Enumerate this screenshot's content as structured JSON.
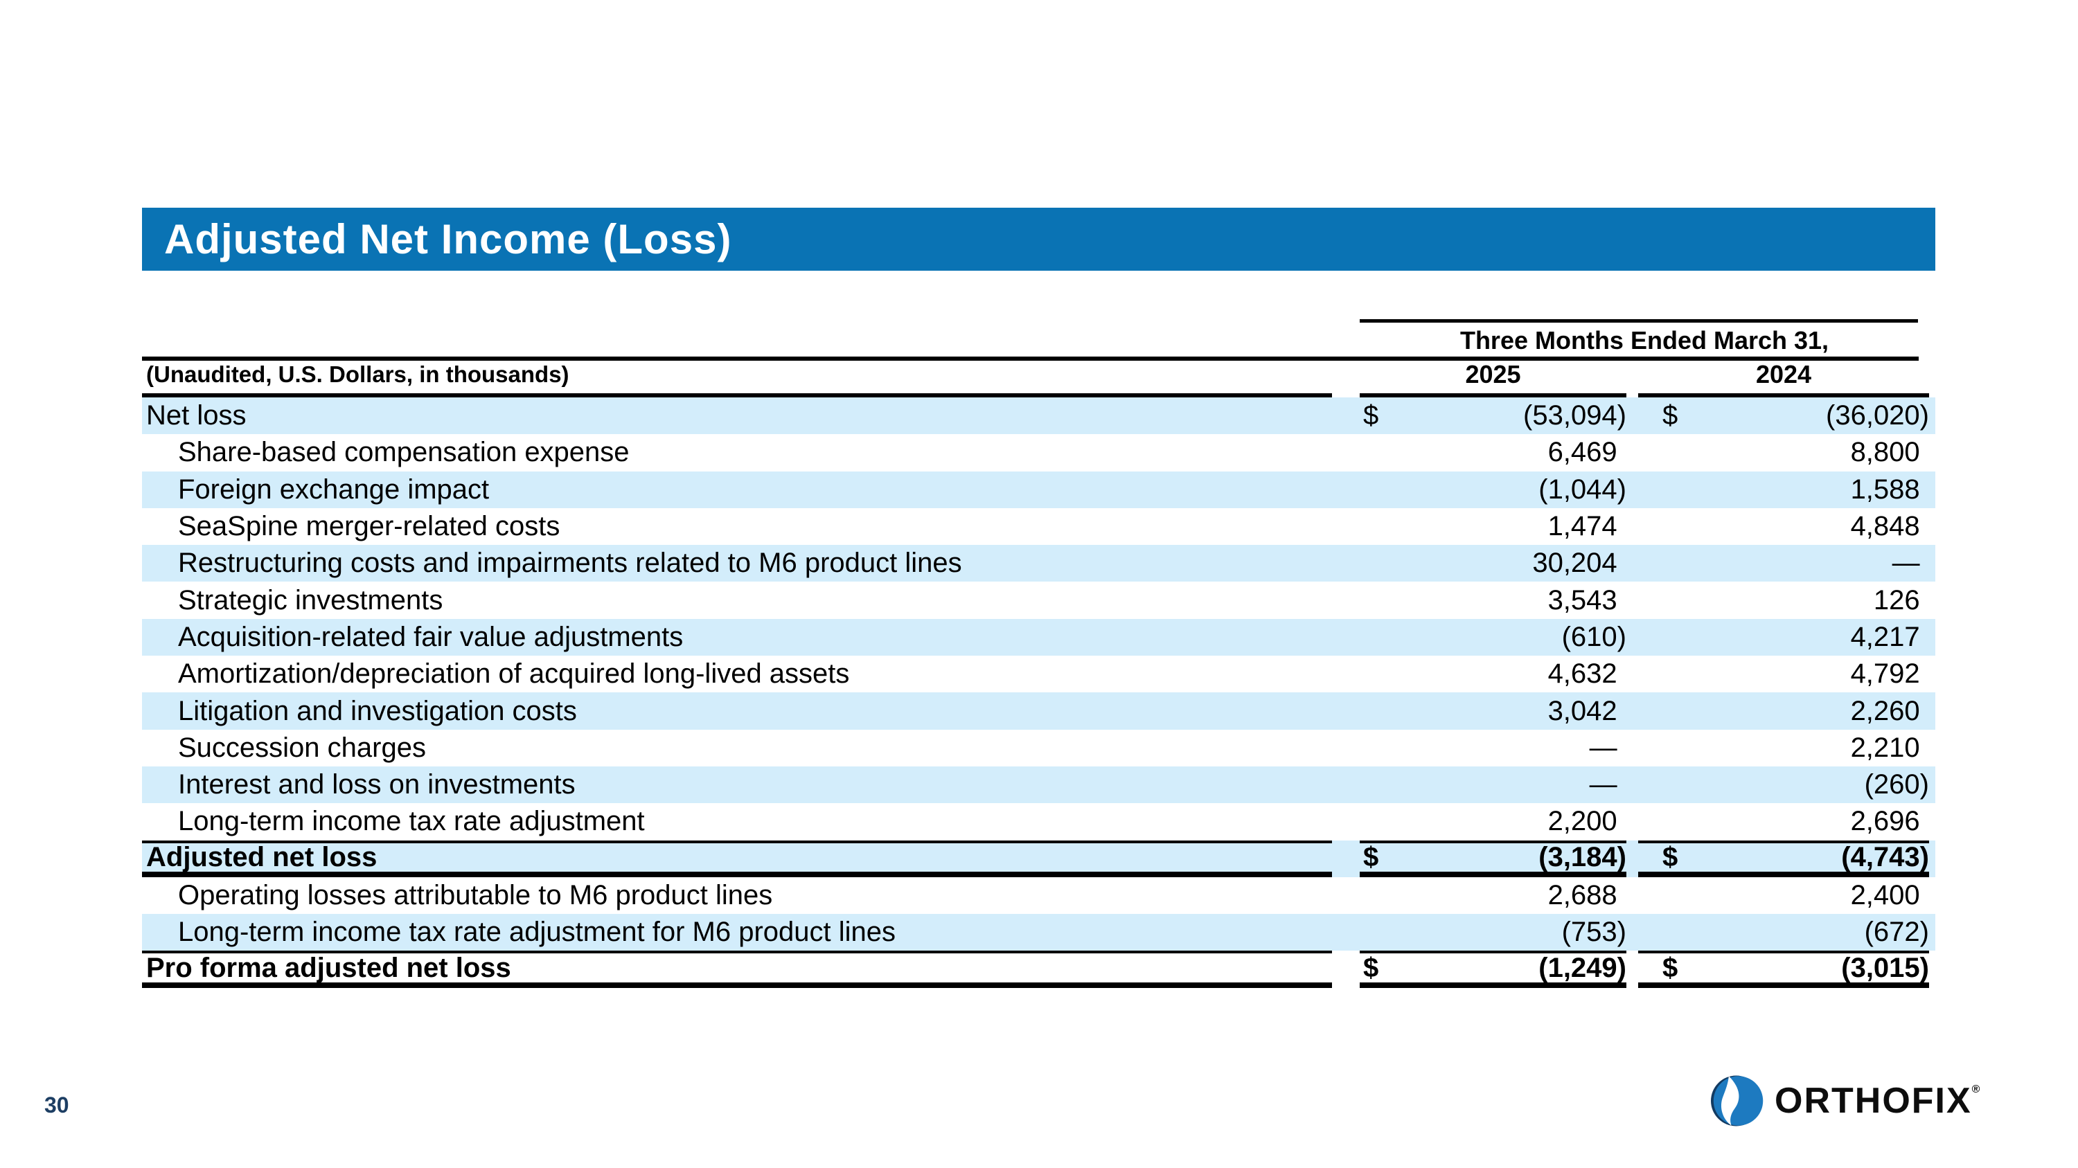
{
  "slide": {
    "title": "Adjusted Net Income (Loss)",
    "page_number": "30",
    "logo_text": "ORTHOFIX",
    "logo_reg": "®"
  },
  "colors": {
    "header_bar": "#0a73b4",
    "row_shade": "#d3edfb",
    "text": "#000000",
    "page_number": "#1d3e63",
    "logo_blue": "#1d7ac0",
    "logo_navy": "#123a61"
  },
  "table": {
    "period_header": "Three Months Ended March 31,",
    "unit_note": "(Unaudited, U.S. Dollars, in thousands)",
    "col_2025": "2025",
    "col_2024": "2024",
    "currency_symbol": "$",
    "rows": [
      {
        "label": "Net loss",
        "indent": false,
        "bold": false,
        "shaded": true,
        "dollar": true,
        "v2025": "(53,094)",
        "v2024": "(36,020)"
      },
      {
        "label": "Share-based compensation expense",
        "indent": true,
        "bold": false,
        "shaded": false,
        "dollar": false,
        "v2025": "6,469",
        "v2024": "8,800"
      },
      {
        "label": "Foreign exchange impact",
        "indent": true,
        "bold": false,
        "shaded": true,
        "dollar": false,
        "v2025": "(1,044)",
        "v2024": "1,588"
      },
      {
        "label": "SeaSpine merger-related costs",
        "indent": true,
        "bold": false,
        "shaded": false,
        "dollar": false,
        "v2025": "1,474",
        "v2024": "4,848"
      },
      {
        "label": "Restructuring costs and impairments related to M6 product lines",
        "indent": true,
        "bold": false,
        "shaded": true,
        "dollar": false,
        "v2025": "30,204",
        "v2024": "—"
      },
      {
        "label": "Strategic investments",
        "indent": true,
        "bold": false,
        "shaded": false,
        "dollar": false,
        "v2025": "3,543",
        "v2024": "126"
      },
      {
        "label": "Acquisition-related fair value adjustments",
        "indent": true,
        "bold": false,
        "shaded": true,
        "dollar": false,
        "v2025": "(610)",
        "v2024": "4,217"
      },
      {
        "label": "Amortization/depreciation of acquired long-lived assets",
        "indent": true,
        "bold": false,
        "shaded": false,
        "dollar": false,
        "v2025": "4,632",
        "v2024": "4,792"
      },
      {
        "label": "Litigation and investigation costs",
        "indent": true,
        "bold": false,
        "shaded": true,
        "dollar": false,
        "v2025": "3,042",
        "v2024": "2,260"
      },
      {
        "label": "Succession charges",
        "indent": true,
        "bold": false,
        "shaded": false,
        "dollar": false,
        "v2025": "—",
        "v2024": "2,210"
      },
      {
        "label": "Interest and loss on investments",
        "indent": true,
        "bold": false,
        "shaded": true,
        "dollar": false,
        "v2025": "—",
        "v2024": "(260)"
      },
      {
        "label": "Long-term income tax rate adjustment",
        "indent": true,
        "bold": false,
        "shaded": false,
        "dollar": false,
        "v2025": "2,200",
        "v2024": "2,696"
      },
      {
        "label": "Adjusted net loss",
        "indent": false,
        "bold": true,
        "shaded": true,
        "dollar": true,
        "v2025": "(3,184)",
        "v2024": "(4,743)",
        "border_top": "thin",
        "border_bottom": "thick"
      },
      {
        "label": "Operating losses attributable to M6 product lines",
        "indent": true,
        "bold": false,
        "shaded": false,
        "dollar": false,
        "v2025": "2,688",
        "v2024": "2,400"
      },
      {
        "label": "Long-term income tax rate adjustment for M6 product lines",
        "indent": true,
        "bold": false,
        "shaded": true,
        "dollar": false,
        "v2025": "(753)",
        "v2024": "(672)"
      },
      {
        "label": "Pro forma adjusted net loss",
        "indent": false,
        "bold": true,
        "shaded": false,
        "dollar": true,
        "v2025": "(1,249)",
        "v2024": "(3,015)",
        "border_top": "thin",
        "border_bottom": "thick"
      }
    ]
  }
}
